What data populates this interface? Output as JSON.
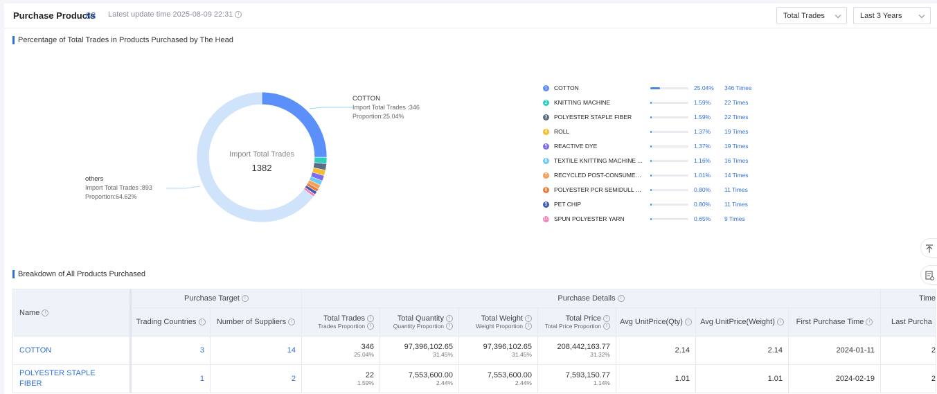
{
  "header": {
    "title": "Purchase Products",
    "count": "83",
    "update_text": "Latest update time 2025-08-09 22:31",
    "metric_select": "Total Trades",
    "range_select": "Last 3 Years"
  },
  "pie_section": {
    "title": "Percentage of Total Trades in Products Purchased by The Head",
    "center_label": "Import Total Trades",
    "center_value": "1382",
    "callout_top": {
      "name": "COTTON",
      "line1": "Import Total Trades :346",
      "line2": "Proportion:25.04%"
    },
    "callout_left": {
      "name": "others",
      "line1": "Import Total Trades :893",
      "line2": "Proportion:64.62%"
    }
  },
  "chart_data": {
    "type": "pie",
    "title": "Percentage of Total Trades in Products Purchased by The Head",
    "center": {
      "label": "Import Total Trades",
      "value": 1382
    },
    "slices": [
      {
        "rank": "1",
        "name": "COTTON",
        "pct_label": "25.04%",
        "pct": 25.04,
        "times": 346,
        "times_label": "346  Times",
        "color": "#5b8ff9"
      },
      {
        "rank": "2",
        "name": "KNITTING MACHINE",
        "pct_label": "1.59%",
        "pct": 1.59,
        "times": 22,
        "times_label": "22  Times",
        "color": "#2fcfc0"
      },
      {
        "rank": "3",
        "name": "POLYESTER STAPLE FIBER",
        "pct_label": "1.59%",
        "pct": 1.59,
        "times": 22,
        "times_label": "22  Times",
        "color": "#5d6b82"
      },
      {
        "rank": "4",
        "name": "ROLL",
        "pct_label": "1.37%",
        "pct": 1.37,
        "times": 19,
        "times_label": "19  Times",
        "color": "#f5be2d"
      },
      {
        "rank": "5",
        "name": "REACTIVE DYE",
        "pct_label": "1.37%",
        "pct": 1.37,
        "times": 19,
        "times_label": "19  Times",
        "color": "#7b6cf2"
      },
      {
        "rank": "6",
        "name": "TEXTILE KNITTING MACHINE ...",
        "pct_label": "1.16%",
        "pct": 1.16,
        "times": 16,
        "times_label": "16  Times",
        "color": "#6ecbf5"
      },
      {
        "rank": "7",
        "name": "RECYCLED POST-CONSUMER...",
        "pct_label": "1.01%",
        "pct": 1.01,
        "times": 14,
        "times_label": "14  Times",
        "color": "#f7a05a"
      },
      {
        "rank": "8",
        "name": "POLYESTER PCR SEMIDULL C...",
        "pct_label": "0.80%",
        "pct": 0.8,
        "times": 11,
        "times_label": "11  Times",
        "color": "#ef7a3a"
      },
      {
        "rank": "9",
        "name": "PET CHIP",
        "pct_label": "0.80%",
        "pct": 0.8,
        "times": 11,
        "times_label": "11  Times",
        "color": "#3f5bb5"
      },
      {
        "rank": "10",
        "name": "SPUN POLYESTER YARN",
        "pct_label": "0.65%",
        "pct": 0.65,
        "times": 9,
        "times_label": "9  Times",
        "color": "#f280b6"
      }
    ],
    "others": {
      "name": "others",
      "pct": 64.62,
      "times": 893,
      "color": "#cfe3fb"
    }
  },
  "breakdown": {
    "title": "Breakdown of All Products Purchased",
    "groups": {
      "target": "Purchase Target",
      "details": "Purchase Details",
      "time": "Time"
    },
    "columns": {
      "name": "Name",
      "countries": "Trading Countries",
      "suppliers": "Number of Suppliers",
      "trades": "Total Trades",
      "trades_sub": "Trades Proportion",
      "qty": "Total Quantity",
      "qty_sub": "Quantity Proportion",
      "weight": "Total Weight",
      "weight_sub": "Weight Proportion",
      "price": "Total Price",
      "price_sub": "Total Price Proportion",
      "unit_qty": "Avg UnitPrice(Qty)",
      "unit_weight": "Avg UnitPrice(Weight)",
      "first": "First Purchase Time",
      "last": "Last Purcha"
    },
    "rows": [
      {
        "name": "COTTON",
        "countries": "3",
        "suppliers": "14",
        "trades": "346",
        "trades_pct": "25.04%",
        "qty": "97,396,102.65",
        "qty_pct": "31.45%",
        "weight": "97,396,102.65",
        "weight_pct": "31.45%",
        "price": "208,442,163.77",
        "price_pct": "31.32%",
        "unit_qty": "2.14",
        "unit_weight": "2.14",
        "first": "2024-01-11",
        "last": "2"
      },
      {
        "name": "POLYESTER STAPLE FIBER",
        "countries": "1",
        "suppliers": "2",
        "trades": "22",
        "trades_pct": "1.59%",
        "qty": "7,553,600.00",
        "qty_pct": "2.44%",
        "weight": "7,553,600.00",
        "weight_pct": "2.44%",
        "price": "7,593,150.77",
        "price_pct": "1.14%",
        "unit_qty": "1.01",
        "unit_weight": "1.01",
        "first": "2024-02-19",
        "last": "2"
      }
    ]
  }
}
